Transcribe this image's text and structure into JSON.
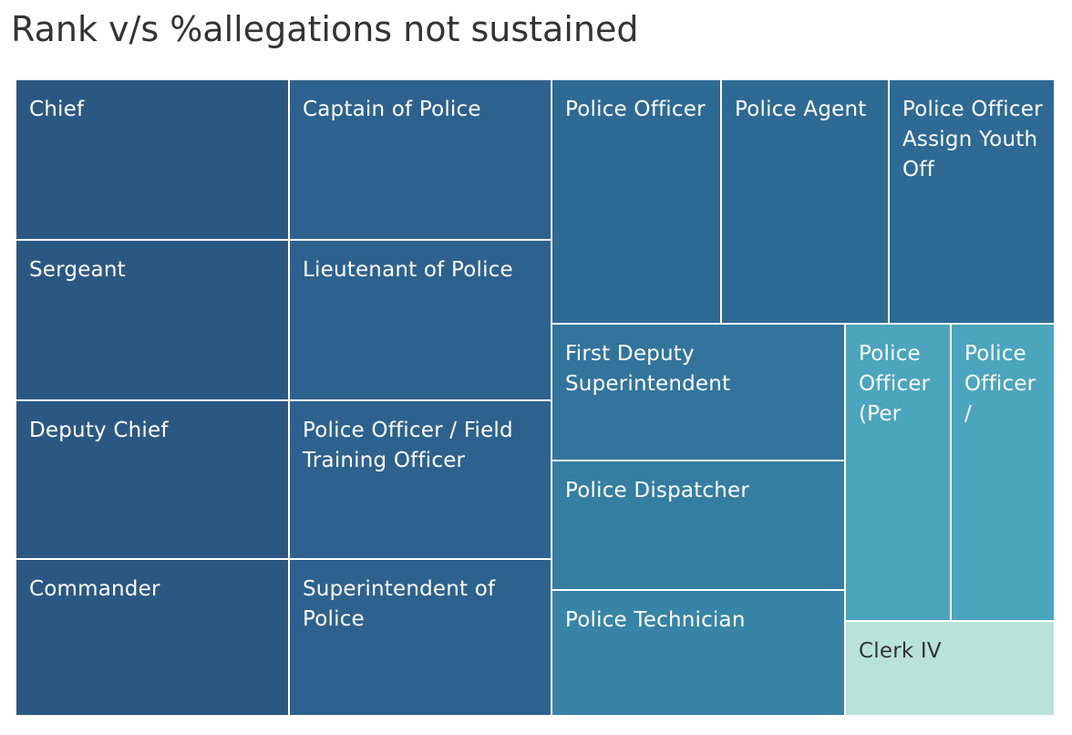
{
  "chart_data": {
    "type": "treemap",
    "title": "Rank v/s %allegations not sustained",
    "tiles": [
      {
        "label": "Chief",
        "color": "#2b5883"
      },
      {
        "label": "Captain of Police",
        "color": "#2e628e"
      },
      {
        "label": "Sergeant",
        "color": "#2b5883"
      },
      {
        "label": "Lieutenant of Police",
        "color": "#2e628e"
      },
      {
        "label": "Deputy Chief",
        "color": "#2b5883"
      },
      {
        "label": "Police Officer / Field\nTraining Officer",
        "color": "#2e628e"
      },
      {
        "label": "Commander",
        "color": "#2b5883"
      },
      {
        "label": "Superintendent of\nPolice",
        "color": "#2e628e"
      },
      {
        "label": "Police Officer",
        "color": "#2e6a94"
      },
      {
        "label": "Police Agent",
        "color": "#2e6a94"
      },
      {
        "label": "Police Officer\nAssign Youth\nOff",
        "color": "#2e6a94"
      },
      {
        "label": "First Deputy\nSuperintendent",
        "color": "#32749c"
      },
      {
        "label": "Police Dispatcher",
        "color": "#357ea2"
      },
      {
        "label": "Police Technician",
        "color": "#3784a6"
      },
      {
        "label": "Police\nOfficer\n(Per",
        "color": "#4ba5bc"
      },
      {
        "label": "Police\nOfficer\n/",
        "color": "#4ba5bc"
      },
      {
        "label": "Clerk IV",
        "color": "#b9e3d8",
        "text_color": "#333333"
      }
    ]
  }
}
